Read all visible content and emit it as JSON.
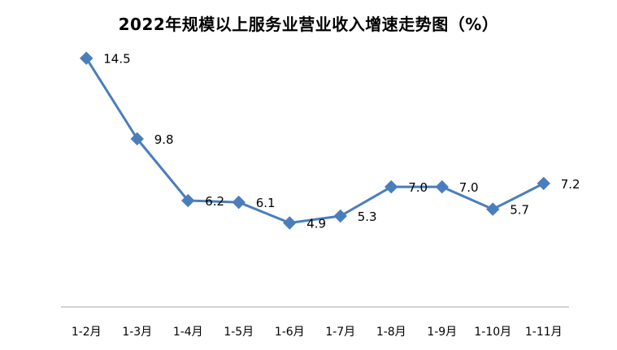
{
  "chart_data": {
    "type": "line",
    "title": "2022年规模以上服务业营业收入增速走势图（%）",
    "categories": [
      "1-2月",
      "1-3月",
      "1-4月",
      "1-5月",
      "1-6月",
      "1-7月",
      "1-8月",
      "1-9月",
      "1-10月",
      "1-11月"
    ],
    "values": [
      14.5,
      9.8,
      6.2,
      6.1,
      4.9,
      5.3,
      7.0,
      7.0,
      5.7,
      7.2
    ],
    "data_labels": [
      "14.5",
      "9.8",
      "6.2",
      "6.1",
      "4.9",
      "5.3",
      "7.0",
      "7.0",
      "5.7",
      "7.2"
    ],
    "xlabel": "",
    "ylabel": "",
    "ylim": [
      0,
      16
    ],
    "grid": false,
    "legend": "none",
    "marker": "diamond",
    "line_color": "#4a7ebb",
    "axis_color": "#a6a6a6"
  }
}
